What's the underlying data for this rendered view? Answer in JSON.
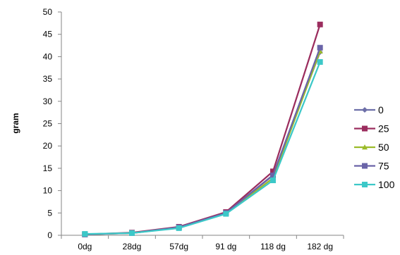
{
  "chart_data": {
    "type": "line",
    "title": "",
    "xlabel": "",
    "ylabel": "gram",
    "categories": [
      "0dg",
      "28dg",
      "57dg",
      "91 dg",
      "118 dg",
      "182 dg"
    ],
    "ylim": [
      0,
      50
    ],
    "yticks": [
      0,
      5,
      10,
      15,
      20,
      25,
      30,
      35,
      40,
      45,
      50
    ],
    "grid": false,
    "legend_position": "right",
    "series": [
      {
        "name": "0",
        "color": "#6D6FA8",
        "marker": "diamond",
        "values": [
          0.2,
          0.5,
          1.8,
          5.0,
          13.5,
          41.0
        ]
      },
      {
        "name": "25",
        "color": "#9B2D5E",
        "marker": "square",
        "values": [
          0.2,
          0.6,
          1.9,
          5.2,
          14.3,
          47.2
        ]
      },
      {
        "name": "50",
        "color": "#9BBB2A",
        "marker": "triangle",
        "values": [
          0.2,
          0.5,
          1.7,
          4.9,
          12.8,
          41.2
        ]
      },
      {
        "name": "75",
        "color": "#6A64A8",
        "marker": "square",
        "values": [
          0.2,
          0.5,
          1.8,
          5.0,
          13.4,
          42.0
        ]
      },
      {
        "name": "100",
        "color": "#3CC8C8",
        "marker": "square",
        "values": [
          0.3,
          0.5,
          1.6,
          4.8,
          12.3,
          38.8
        ]
      }
    ]
  }
}
